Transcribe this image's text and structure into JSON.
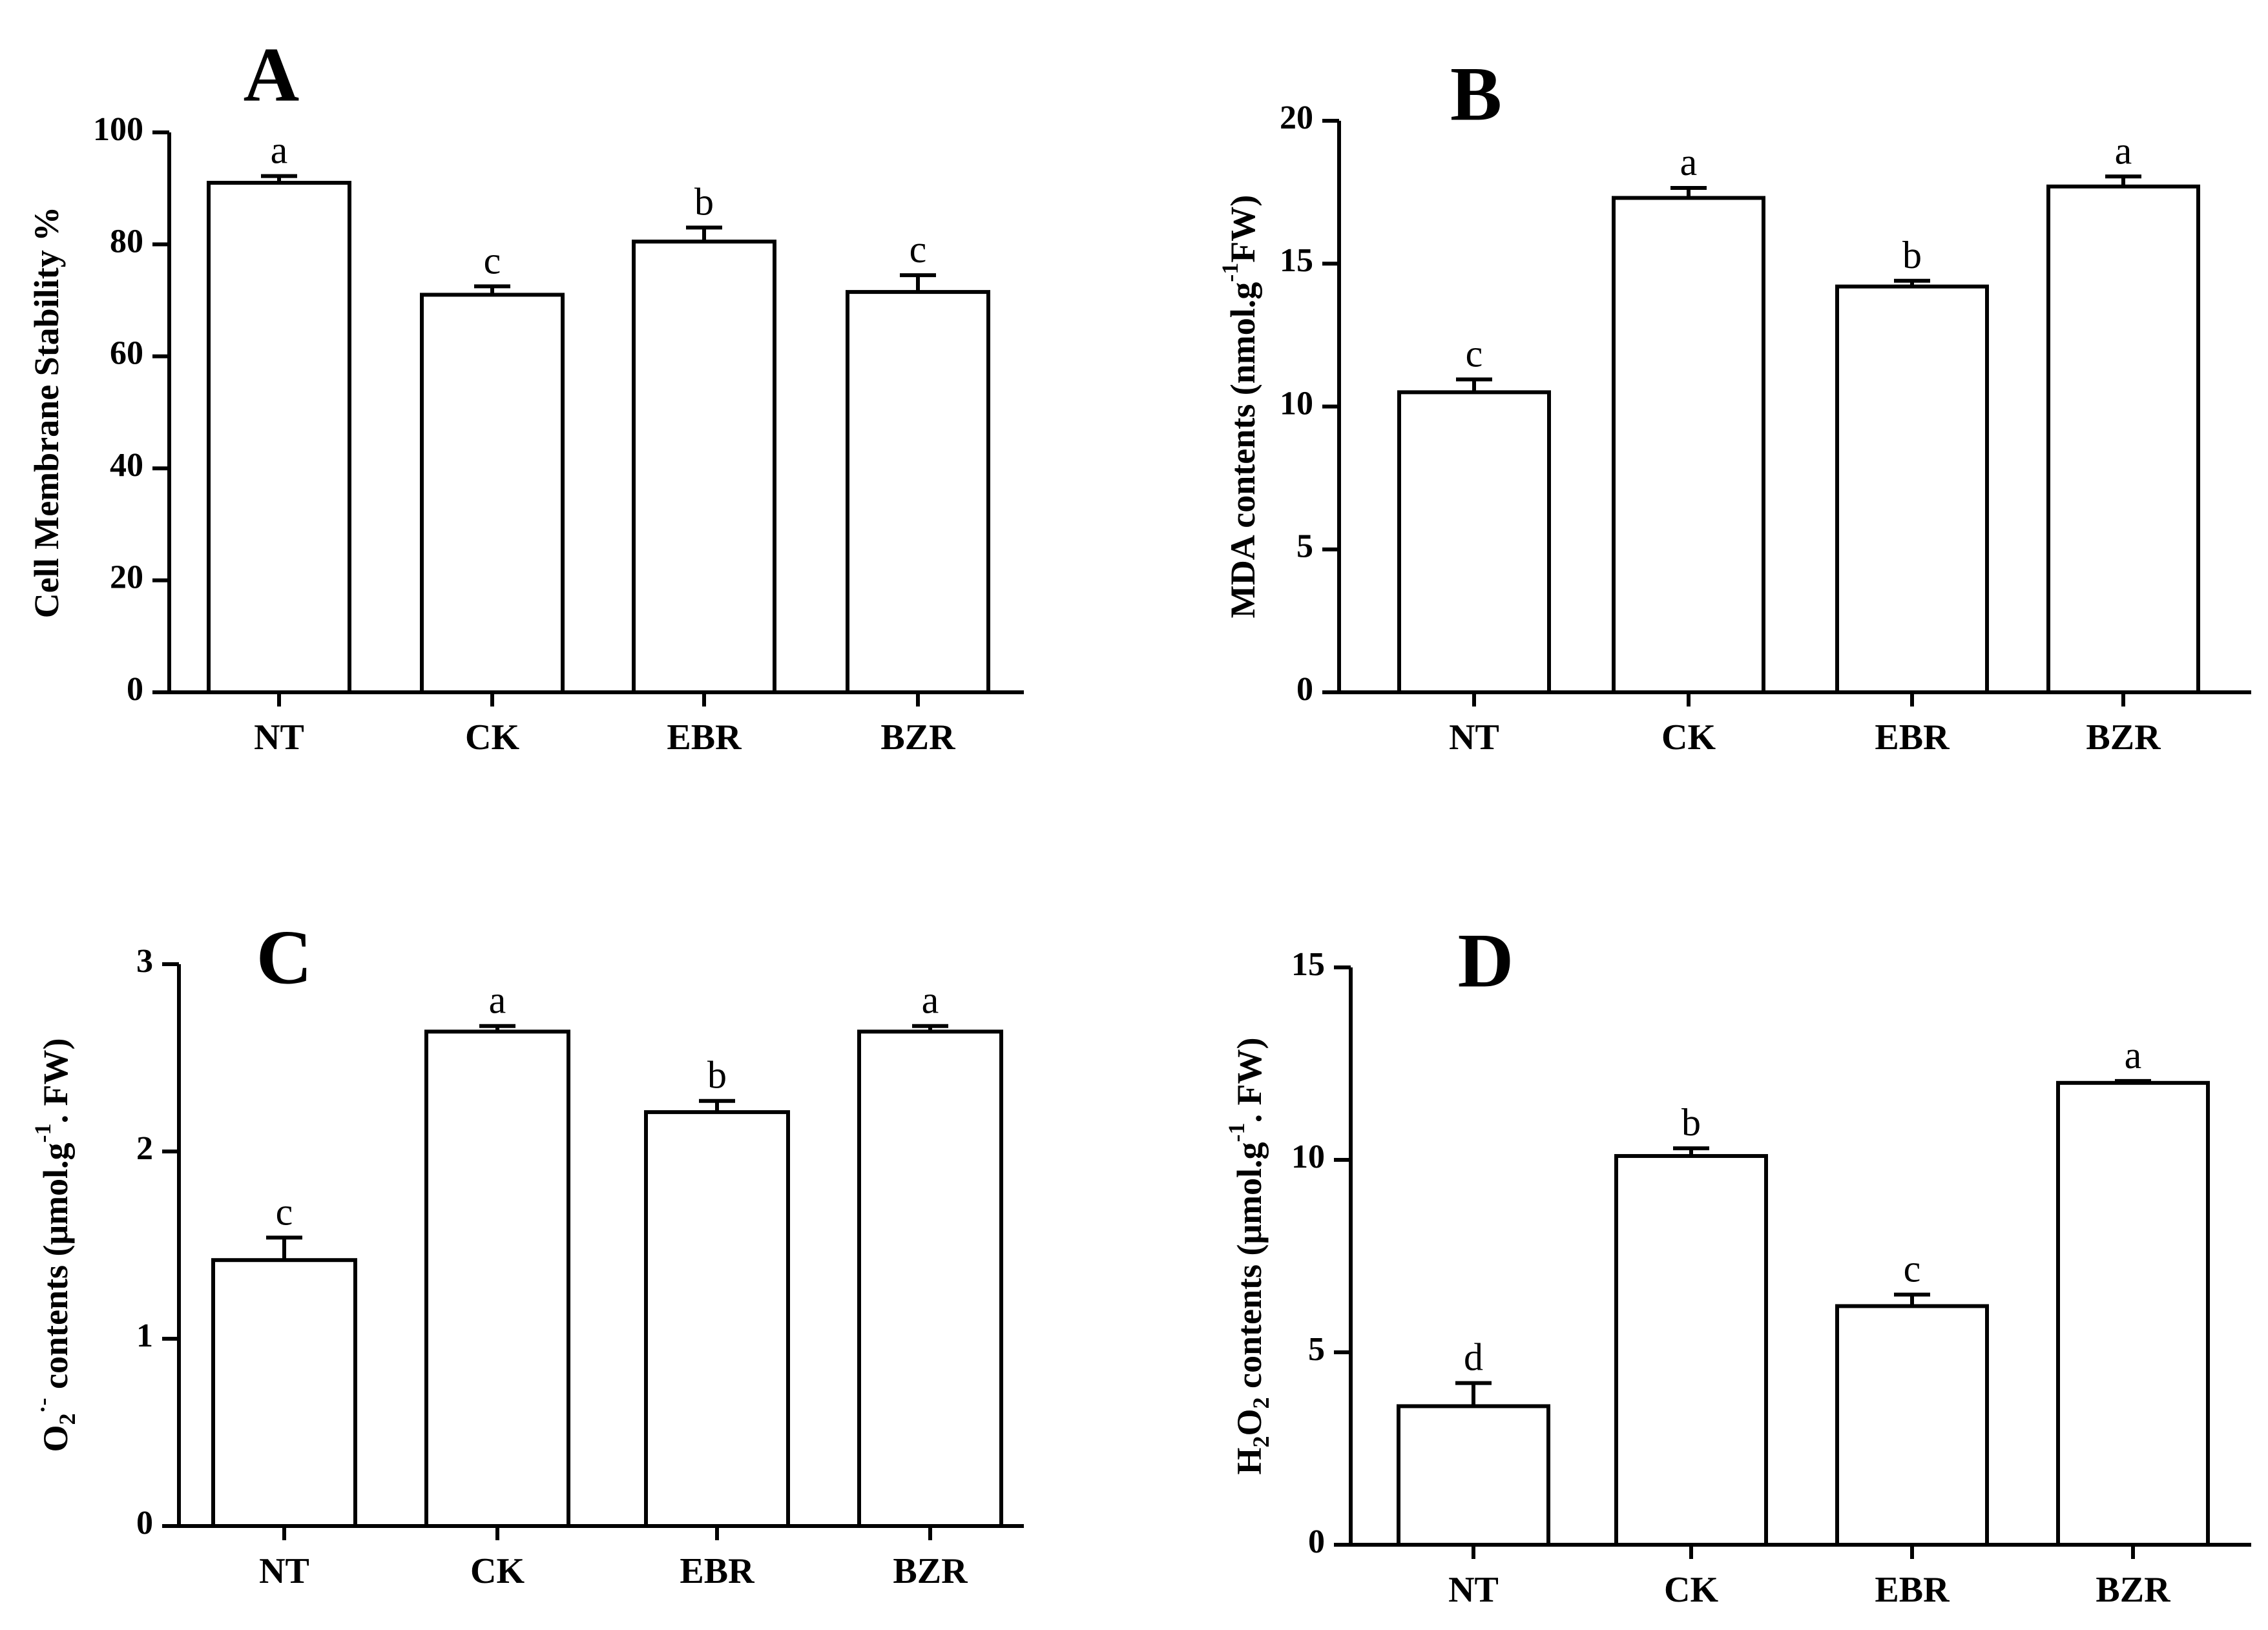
{
  "chart_data": [
    {
      "type": "bar",
      "panel": "A",
      "categories": [
        "NT",
        "CK",
        "EBR",
        "BZR"
      ],
      "values": [
        91,
        71,
        80.5,
        71.5
      ],
      "errors": [
        1.2,
        1.5,
        2.5,
        3
      ],
      "significance": [
        "a",
        "c",
        "b",
        "c"
      ],
      "ylabel": "Cell Membrane Stability %",
      "ylabel_parts": [
        {
          "t": "Cell Membrane Stability %"
        }
      ],
      "ylim": [
        0,
        100
      ],
      "yticks": [
        0,
        20,
        40,
        60,
        80,
        100
      ]
    },
    {
      "type": "bar",
      "panel": "B",
      "categories": [
        "NT",
        "CK",
        "EBR",
        "BZR"
      ],
      "values": [
        10.5,
        17.3,
        14.2,
        17.7
      ],
      "errors": [
        0.45,
        0.35,
        0.2,
        0.35
      ],
      "significance": [
        "c",
        "a",
        "b",
        "a"
      ],
      "ylabel": "MDA contents (nmol.g-1FW)",
      "ylabel_parts": [
        {
          "t": "MDA contents (nmol.g"
        },
        {
          "t": "-1",
          "s": "sup"
        },
        {
          "t": "FW)"
        }
      ],
      "ylim": [
        0,
        20
      ],
      "yticks": [
        0,
        5,
        10,
        15,
        20
      ]
    },
    {
      "type": "bar",
      "panel": "C",
      "categories": [
        "NT",
        "CK",
        "EBR",
        "BZR"
      ],
      "values": [
        1.42,
        2.64,
        2.21,
        2.64
      ],
      "errors": [
        0.12,
        0.03,
        0.06,
        0.03
      ],
      "significance": [
        "c",
        "a",
        "b",
        "a"
      ],
      "ylabel": "O2·- contents (μmol.g-1. FW)",
      "ylabel_parts": [
        {
          "t": "O"
        },
        {
          "t": "2",
          "s": "sub"
        },
        {
          "t": "·-",
          "s": "sup"
        },
        {
          "t": " contents (μmol.g"
        },
        {
          "t": "-1",
          "s": "sup"
        },
        {
          "t": ". FW)"
        }
      ],
      "ylim": [
        0,
        3
      ],
      "yticks": [
        0,
        1,
        2,
        3
      ]
    },
    {
      "type": "bar",
      "panel": "D",
      "categories": [
        "NT",
        "CK",
        "EBR",
        "BZR"
      ],
      "values": [
        3.6,
        10.1,
        6.2,
        12.0
      ],
      "errors": [
        0.6,
        0.2,
        0.3,
        0.05
      ],
      "significance": [
        "d",
        "b",
        "c",
        "a"
      ],
      "ylabel": "H2O2 contents (μmol.g-1. FW)",
      "ylabel_parts": [
        {
          "t": "H"
        },
        {
          "t": "2",
          "s": "sub"
        },
        {
          "t": "O"
        },
        {
          "t": "2",
          "s": "sub"
        },
        {
          "t": " contents (μmol.g"
        },
        {
          "t": "-1",
          "s": "sup"
        },
        {
          "t": ". FW)"
        }
      ],
      "ylim": [
        0,
        15
      ],
      "yticks": [
        0,
        5,
        10,
        15
      ]
    }
  ]
}
